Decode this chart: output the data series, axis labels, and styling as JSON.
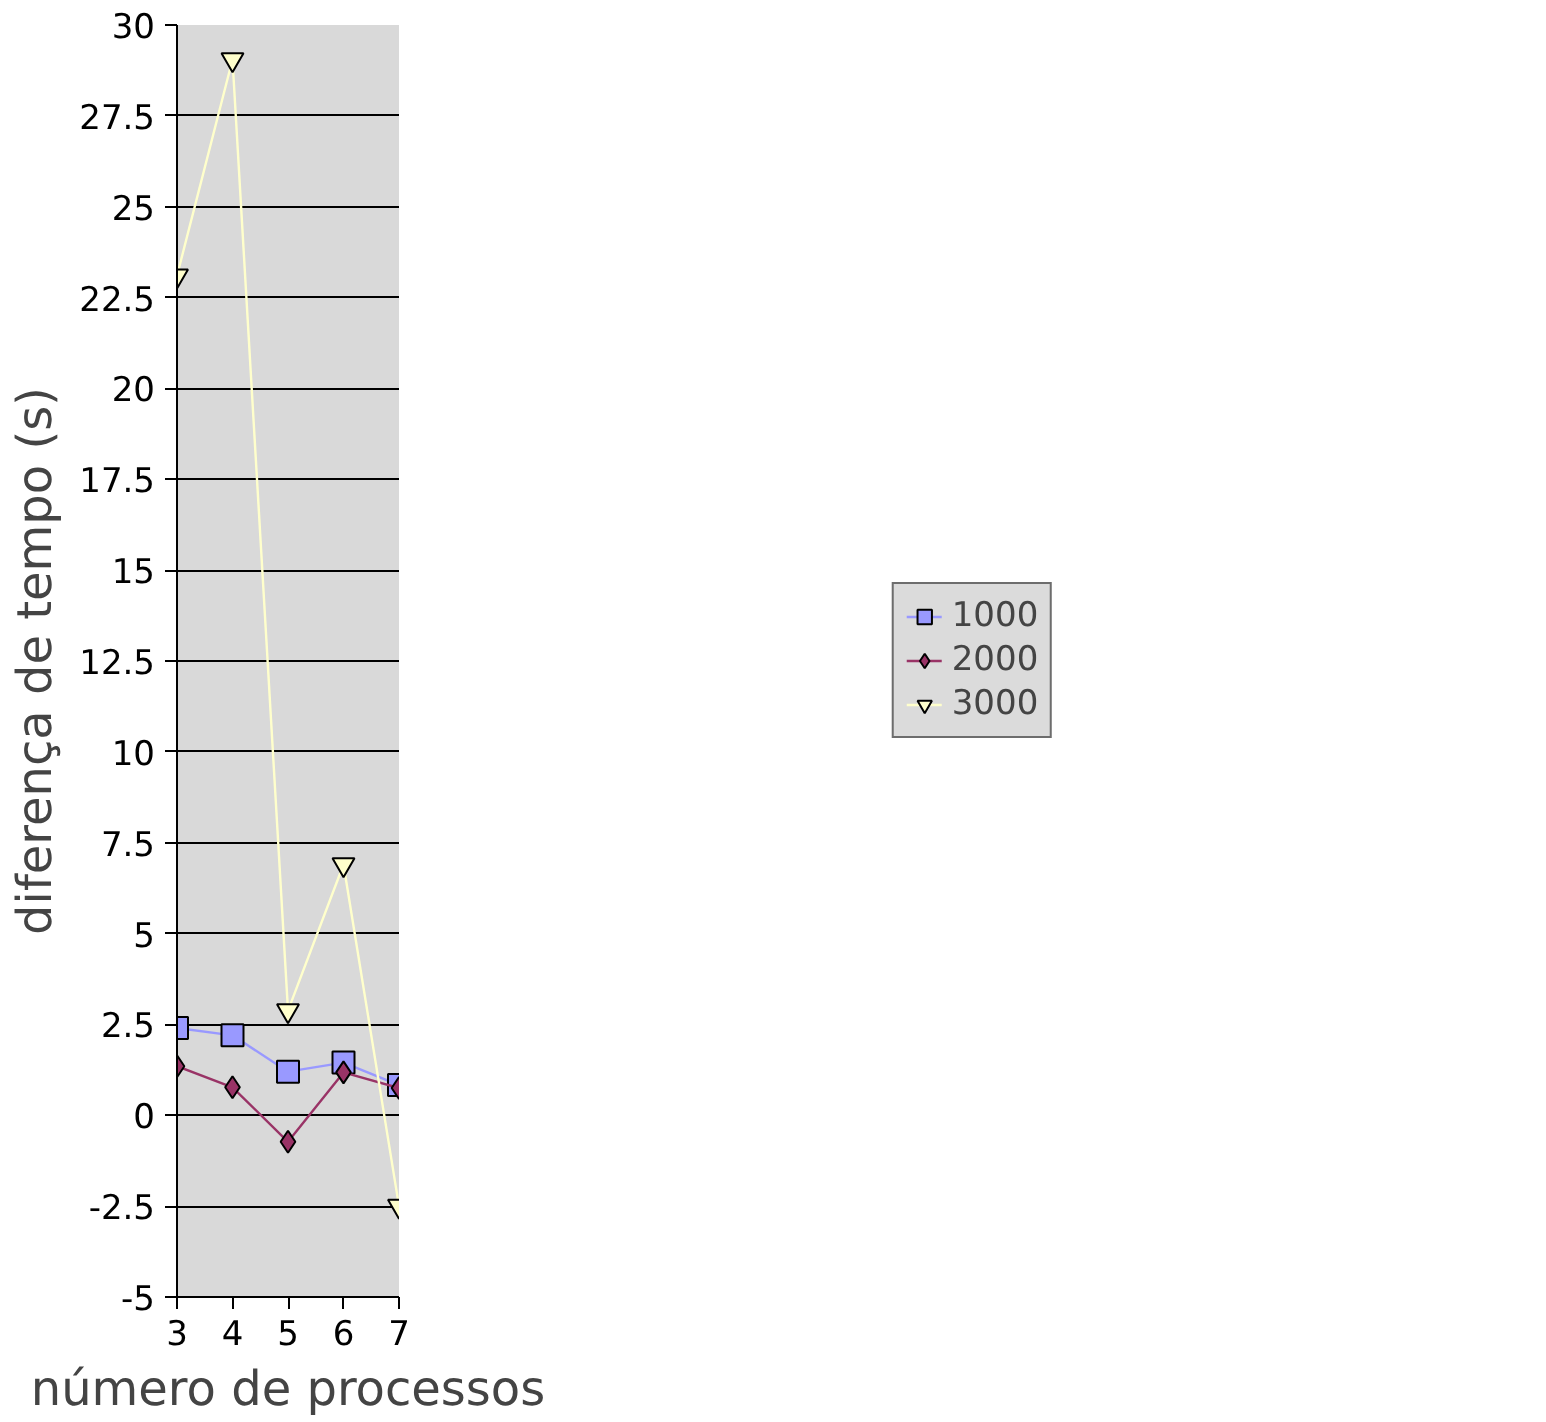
{
  "chart_data": {
    "type": "line",
    "xlabel": "número de processos",
    "ylabel": "diferença de tempo (s)",
    "x": [
      3,
      4,
      5,
      6,
      7
    ],
    "series": [
      {
        "name": "1000",
        "color": "#9999ff",
        "marker": "square",
        "values": [
          2.4,
          2.2,
          1.2,
          1.45,
          0.83
        ]
      },
      {
        "name": "2000",
        "color": "#993366",
        "marker": "diamond",
        "values": [
          1.35,
          0.77,
          -0.73,
          1.18,
          0.75
        ]
      },
      {
        "name": "3000",
        "color": "#ffffcc",
        "marker": "triangle",
        "values": [
          23.1,
          29.05,
          2.88,
          6.9,
          -2.5
        ]
      }
    ],
    "xlim": [
      3,
      7
    ],
    "xticks": [
      3,
      4,
      5,
      6,
      7
    ],
    "ylim": [
      -5,
      30
    ],
    "yticks": [
      -5,
      -2.5,
      0,
      2.5,
      5,
      7.5,
      10,
      12.5,
      15,
      17.5,
      20,
      22.5,
      25,
      27.5,
      30
    ],
    "grid": "y",
    "legend": "right"
  }
}
